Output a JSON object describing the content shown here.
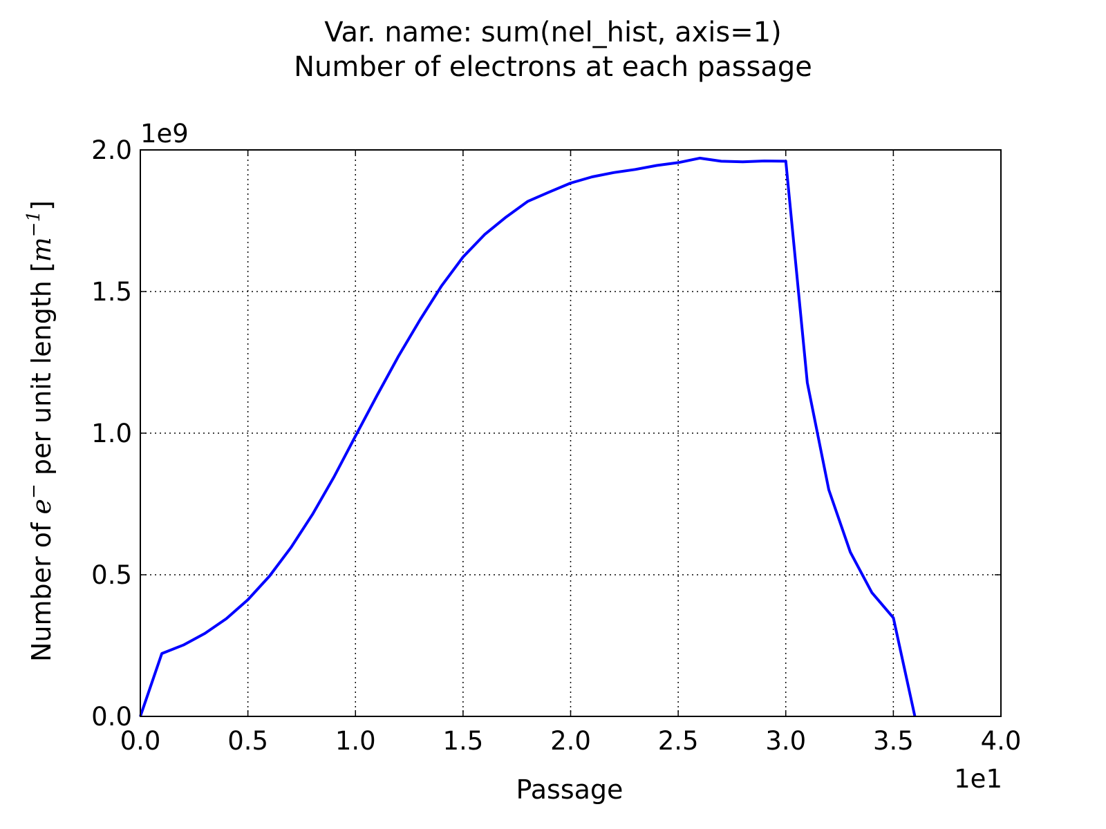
{
  "chart_data": {
    "type": "line",
    "title": [
      "Var. name: sum(nel_hist, axis=1)",
      "Number of electrons at each passage"
    ],
    "xlabel": "Passage",
    "ylabel": {
      "prefix": "Number of ",
      "symbol": "e",
      "symbol_sup": "−",
      "middle": " per unit length [",
      "unit": "m",
      "unit_sup": "−1",
      "suffix": "]"
    },
    "x_offset_text": "1e1",
    "y_offset_text": "1e9",
    "xlim": [
      0,
      40
    ],
    "ylim": [
      0,
      2000000000
    ],
    "x_ticks": [
      0,
      5,
      10,
      15,
      20,
      25,
      30,
      35,
      40
    ],
    "x_tick_labels": [
      "0.0",
      "0.5",
      "1.0",
      "1.5",
      "2.0",
      "2.5",
      "3.0",
      "3.5",
      "4.0"
    ],
    "y_ticks": [
      0,
      500000000,
      1000000000,
      1500000000,
      2000000000
    ],
    "y_tick_labels": [
      "0.0",
      "0.5",
      "1.0",
      "1.5",
      "2.0"
    ],
    "grid": true,
    "line_color": "#0000ff",
    "series": [
      {
        "x": [
          0,
          1,
          2,
          3,
          4,
          5,
          6,
          7,
          8,
          9,
          10,
          11,
          12,
          13,
          14,
          15,
          16,
          17,
          18,
          19,
          20,
          21,
          22,
          23,
          24,
          25,
          26,
          27,
          28,
          29,
          30,
          31,
          32,
          33,
          34,
          35,
          36
        ],
        "values": [
          0,
          222000000,
          252000000,
          293000000,
          345000000,
          412000000,
          495000000,
          596000000,
          713000000,
          845000000,
          990000000,
          1133000000,
          1272000000,
          1400000000,
          1520000000,
          1622000000,
          1701000000,
          1763000000,
          1818000000,
          1851000000,
          1883000000,
          1905000000,
          1920000000,
          1931000000,
          1945000000,
          1955000000,
          1971000000,
          1960000000,
          1958000000,
          1961000000,
          1960000000,
          1178000000,
          800000000,
          580000000,
          437000000,
          348000000,
          0
        ]
      }
    ]
  }
}
